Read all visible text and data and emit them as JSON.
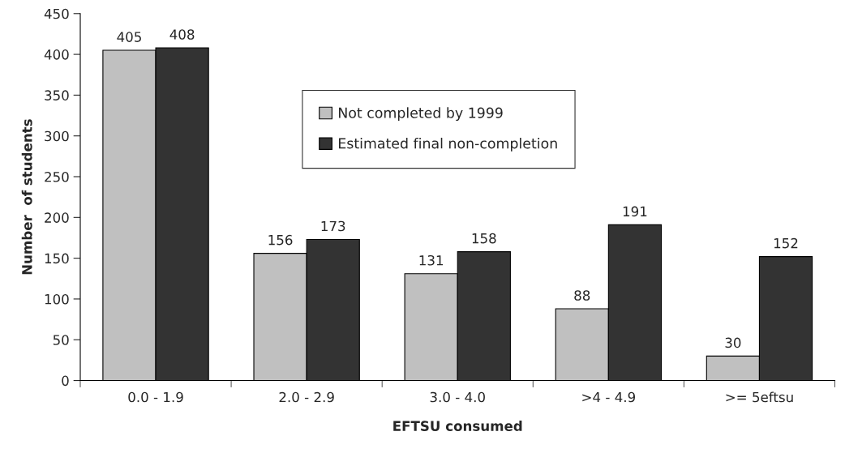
{
  "chart_data": {
    "type": "bar",
    "xlabel": "EFTSU consumed",
    "ylabel": "Number  of students",
    "categories": [
      "0.0 - 1.9",
      "2.0 - 2.9",
      "3.0 - 4.0",
      ">4 - 4.9",
      ">= 5eftsu"
    ],
    "series": [
      {
        "name": "Not completed by 1999",
        "color": "#c0c0c0",
        "values": [
          405,
          156,
          131,
          88,
          30
        ]
      },
      {
        "name": "Estimated final non-completion",
        "color": "#333333",
        "values": [
          408,
          173,
          158,
          191,
          152
        ]
      }
    ],
    "ylim": [
      0,
      450
    ],
    "yticks": [
      0,
      50,
      100,
      150,
      200,
      250,
      300,
      350,
      400,
      450
    ],
    "data_labels": true,
    "legend": "top",
    "grid": false
  }
}
